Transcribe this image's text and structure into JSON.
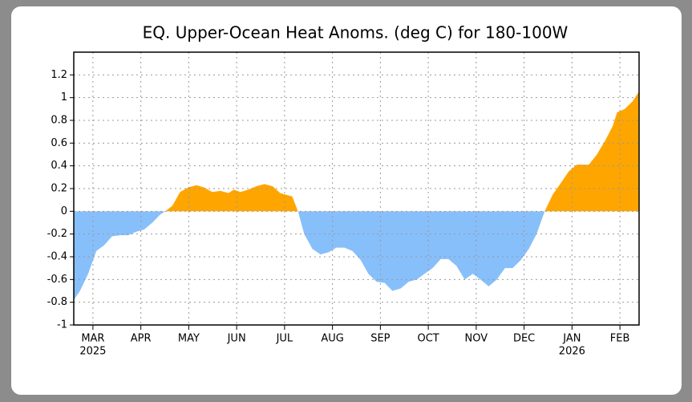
{
  "chart_data": {
    "type": "area",
    "title": "EQ. Upper-Ocean Heat Anoms. (deg C) for 180-100W",
    "pos_color": "#ffa500",
    "neg_color": "#87bffb",
    "grid": true,
    "xlim": [
      -0.4,
      11.4
    ],
    "xticks": [
      {
        "value": 0,
        "label": "MAR"
      },
      {
        "value": 1,
        "label": "APR"
      },
      {
        "value": 2,
        "label": "MAY"
      },
      {
        "value": 3,
        "label": "JUN"
      },
      {
        "value": 4,
        "label": "JUL"
      },
      {
        "value": 5,
        "label": "AUG"
      },
      {
        "value": 6,
        "label": "SEP"
      },
      {
        "value": 7,
        "label": "OCT"
      },
      {
        "value": 8,
        "label": "NOV"
      },
      {
        "value": 9,
        "label": "DEC"
      },
      {
        "value": 10,
        "label": "JAN"
      },
      {
        "value": 11,
        "label": "FEB"
      }
    ],
    "year_labels": [
      {
        "value": 0,
        "label": "2025"
      },
      {
        "value": 10,
        "label": "2026"
      }
    ],
    "ylim": [
      -1,
      1.4
    ],
    "yticks": [
      -1,
      -0.8,
      -0.6,
      -0.4,
      -0.2,
      0,
      0.2,
      0.4,
      0.6,
      0.8,
      1,
      1.2
    ],
    "x": [
      -0.4,
      -0.27,
      -0.1,
      0.07,
      0.23,
      0.4,
      0.57,
      0.74,
      0.9,
      1.07,
      1.24,
      1.4,
      1.51,
      1.66,
      1.82,
      1.99,
      2.16,
      2.32,
      2.49,
      2.66,
      2.83,
      2.94,
      3.08,
      3.24,
      3.41,
      3.58,
      3.75,
      3.91,
      4.16,
      4.28,
      4.41,
      4.58,
      4.75,
      4.92,
      5.08,
      5.25,
      5.42,
      5.59,
      5.75,
      5.92,
      6.09,
      6.25,
      6.42,
      6.59,
      6.76,
      6.92,
      7.09,
      7.26,
      7.42,
      7.59,
      7.76,
      7.93,
      8.09,
      8.26,
      8.43,
      8.6,
      8.76,
      8.93,
      9.1,
      9.26,
      9.43,
      9.6,
      9.77,
      9.93,
      10.1,
      10.35,
      10.52,
      10.69,
      10.85,
      10.94,
      11.1,
      11.27,
      11.39
    ],
    "values": [
      -0.78,
      -0.7,
      -0.55,
      -0.35,
      -0.3,
      -0.22,
      -0.21,
      -0.21,
      -0.18,
      -0.16,
      -0.1,
      -0.03,
      0,
      0.05,
      0.17,
      0.21,
      0.23,
      0.21,
      0.17,
      0.18,
      0.16,
      0.19,
      0.17,
      0.19,
      0.22,
      0.24,
      0.22,
      0.16,
      0.13,
      0,
      -0.2,
      -0.33,
      -0.38,
      -0.36,
      -0.32,
      -0.32,
      -0.35,
      -0.43,
      -0.55,
      -0.62,
      -0.63,
      -0.7,
      -0.68,
      -0.62,
      -0.6,
      -0.55,
      -0.5,
      -0.42,
      -0.42,
      -0.48,
      -0.6,
      -0.55,
      -0.6,
      -0.66,
      -0.6,
      -0.5,
      -0.5,
      -0.43,
      -0.33,
      -0.2,
      0,
      0.15,
      0.25,
      0.35,
      0.41,
      0.41,
      0.5,
      0.62,
      0.75,
      0.87,
      0.9,
      0.97,
      1.05
    ]
  }
}
